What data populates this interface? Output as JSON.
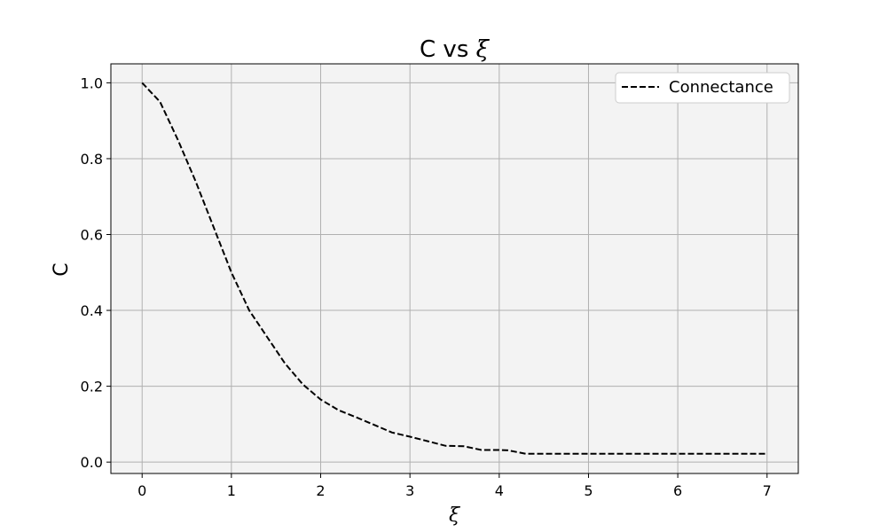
{
  "chart_data": {
    "type": "line",
    "title": "C vs ξ",
    "title_prefix": "C vs ",
    "title_symbol": "ξ",
    "xlabel": "ξ",
    "ylabel": "C",
    "xlim": [
      -0.35,
      7.35
    ],
    "ylim": [
      -0.03,
      1.05
    ],
    "xticks": [
      0,
      1,
      2,
      3,
      4,
      5,
      6,
      7
    ],
    "yticks": [
      0.0,
      0.2,
      0.4,
      0.6,
      0.8,
      1.0
    ],
    "xtick_labels": [
      "0",
      "1",
      "2",
      "3",
      "4",
      "5",
      "6",
      "7"
    ],
    "ytick_labels": [
      "0.0",
      "0.2",
      "0.4",
      "0.6",
      "0.8",
      "1.0"
    ],
    "grid": true,
    "legend_position": "top-right",
    "colors": {
      "background": "#f3f3f3",
      "grid": "#b0b0b0",
      "line": "#000000",
      "frame": "#000000"
    },
    "series": [
      {
        "name": "Connectance",
        "style": "dashed",
        "x": [
          0.0,
          0.2,
          0.4,
          0.6,
          0.8,
          1.0,
          1.2,
          1.4,
          1.6,
          1.8,
          2.0,
          2.2,
          2.4,
          2.6,
          2.8,
          3.0,
          3.2,
          3.4,
          3.6,
          3.8,
          4.0,
          4.1,
          4.3,
          4.5,
          5.0,
          5.5,
          6.0,
          6.5,
          7.0
        ],
        "y": [
          1.0,
          0.95,
          0.85,
          0.74,
          0.62,
          0.5,
          0.4,
          0.33,
          0.26,
          0.205,
          0.165,
          0.137,
          0.118,
          0.098,
          0.078,
          0.067,
          0.055,
          0.043,
          0.042,
          0.032,
          0.032,
          0.031,
          0.022,
          0.022,
          0.022,
          0.022,
          0.022,
          0.022,
          0.022
        ]
      }
    ]
  }
}
